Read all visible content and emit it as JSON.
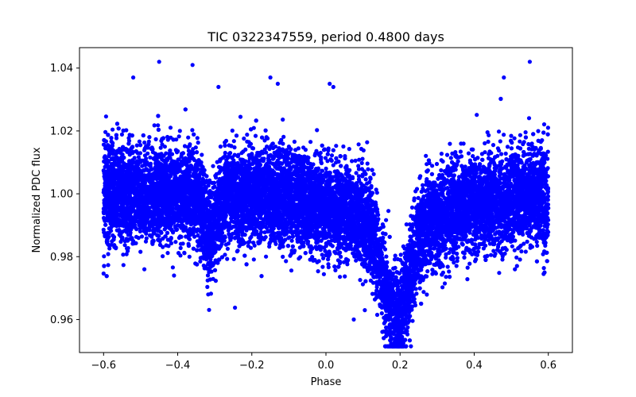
{
  "chart_data": {
    "type": "scatter",
    "title": "TIC 0322347559, period 0.4800 days",
    "xlabel": "Phase",
    "ylabel": "Normalized PDC flux",
    "xlim": [
      -0.665,
      0.665
    ],
    "ylim": [
      0.9495,
      1.0465
    ],
    "x_ticks": [
      -0.6,
      -0.4,
      -0.2,
      0.0,
      0.2,
      0.4,
      0.6
    ],
    "x_tick_labels": [
      "−0.6",
      "−0.4",
      "−0.2",
      "0.0",
      "0.2",
      "0.4",
      "0.6"
    ],
    "y_ticks": [
      0.96,
      0.98,
      1.0,
      1.02,
      1.04
    ],
    "y_tick_labels": [
      "0.96",
      "0.98",
      "1.00",
      "1.02",
      "1.04"
    ],
    "grid": false,
    "marker_color": "#0000ff",
    "series": [
      {
        "name": "flux",
        "n_points": 14000,
        "x_range": [
          -0.6,
          0.6
        ],
        "baseline": 1.0,
        "scatter_sigma": 0.0075,
        "primary_eclipse_phase": 0.19,
        "primary_eclipse_depth": 0.03,
        "secondary_eclipse_phase": -0.31,
        "secondary_eclipse_depth": 0.012,
        "outliers": [
          {
            "x": -0.45,
            "y": 1.042
          },
          {
            "x": 0.55,
            "y": 1.042
          },
          {
            "x": -0.36,
            "y": 1.041
          },
          {
            "x": -0.52,
            "y": 1.037
          },
          {
            "x": 0.48,
            "y": 1.037
          },
          {
            "x": -0.15,
            "y": 1.037
          },
          {
            "x": -0.13,
            "y": 1.035
          },
          {
            "x": 0.01,
            "y": 1.035
          },
          {
            "x": 0.02,
            "y": 1.034
          },
          {
            "x": -0.29,
            "y": 1.034
          },
          {
            "x": 0.19,
            "y": 0.952
          },
          {
            "x": 0.19,
            "y": 0.958
          },
          {
            "x": 0.2,
            "y": 0.958
          },
          {
            "x": 0.075,
            "y": 0.96
          },
          {
            "x": 0.105,
            "y": 0.963
          },
          {
            "x": -0.49,
            "y": 0.976
          },
          {
            "x": -0.41,
            "y": 0.974
          },
          {
            "x": 0.51,
            "y": 0.976
          },
          {
            "x": 0.59,
            "y": 0.975
          }
        ]
      }
    ]
  }
}
